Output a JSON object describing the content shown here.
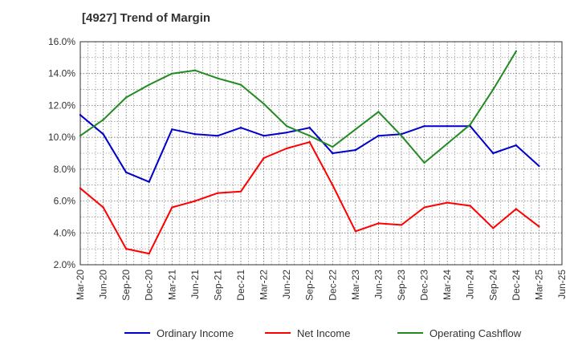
{
  "chart_data": {
    "type": "line",
    "title": "[4927]  Trend of Margin",
    "xlabel": "",
    "ylabel": "",
    "ylim": [
      2.0,
      16.0
    ],
    "yticks": [
      "2.0%",
      "4.0%",
      "6.0%",
      "8.0%",
      "10.0%",
      "12.0%",
      "14.0%",
      "16.0%"
    ],
    "ytick_values": [
      2,
      4,
      6,
      8,
      10,
      12,
      14,
      16
    ],
    "xtick_labels": [
      "Mar-20",
      "Jun-20",
      "Sep-20",
      "Dec-20",
      "Mar-21",
      "Jun-21",
      "Sep-21",
      "Dec-21",
      "Mar-22",
      "Jun-22",
      "Sep-22",
      "Dec-22",
      "Mar-23",
      "Jun-23",
      "Sep-23",
      "Dec-23",
      "Mar-24",
      "Jun-24",
      "Sep-24",
      "Dec-24",
      "Mar-25",
      "Jun-25"
    ],
    "grid": true,
    "legend_position": "bottom",
    "series": [
      {
        "name": "Ordinary Income",
        "color": "#0000cc",
        "values": [
          11.4,
          10.2,
          7.8,
          7.2,
          10.5,
          10.2,
          10.1,
          10.6,
          10.1,
          10.3,
          10.6,
          9.0,
          9.2,
          10.1,
          10.2,
          10.7,
          10.7,
          10.7,
          9.0,
          9.5,
          8.2,
          null
        ]
      },
      {
        "name": "Net Income",
        "color": "#ff0000",
        "values": [
          6.8,
          5.6,
          3.0,
          2.7,
          5.6,
          6.0,
          6.5,
          6.6,
          8.7,
          9.3,
          9.7,
          7.0,
          4.1,
          4.6,
          4.5,
          5.6,
          5.9,
          5.7,
          4.3,
          5.5,
          4.4,
          null
        ]
      },
      {
        "name": "Operating Cashflow",
        "color": "#228b22",
        "values": [
          10.1,
          11.1,
          12.5,
          13.3,
          14.0,
          14.2,
          13.7,
          13.3,
          12.1,
          10.7,
          10.1,
          9.4,
          10.5,
          11.6,
          10.1,
          8.4,
          9.6,
          10.8,
          13.0,
          15.4,
          null,
          null
        ]
      }
    ]
  }
}
